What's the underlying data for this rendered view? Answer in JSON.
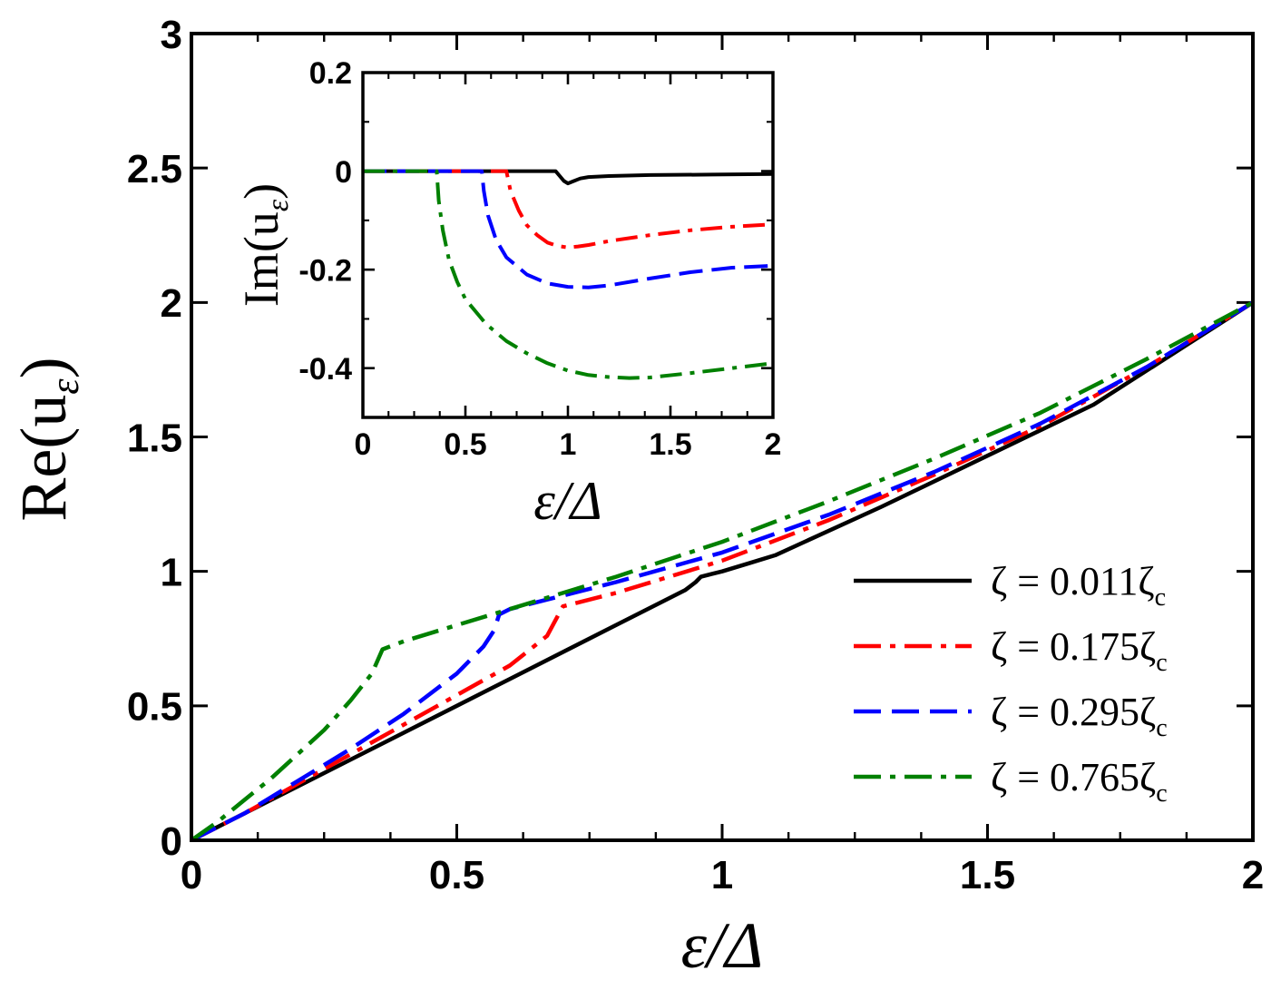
{
  "chart_data": [
    {
      "id": "main",
      "type": "line",
      "xlabel": "ε/Δ",
      "ylabel": "Re(u",
      "ylabel_sub": "ε",
      "ylabel_close": ")",
      "xlim": [
        0,
        2
      ],
      "ylim": [
        0,
        3
      ],
      "xticks": [
        0,
        0.5,
        1,
        1.5,
        2
      ],
      "xtick_labels": [
        "0",
        "0.5",
        "1",
        "1.5",
        "2"
      ],
      "yticks": [
        0,
        0.5,
        1,
        1.5,
        2,
        2.5,
        3
      ],
      "ytick_labels": [
        "0",
        "0.5",
        "1",
        "1.5",
        "2",
        "2.5",
        "3"
      ],
      "legend_position": "lower-right",
      "series": [
        {
          "name": "ζ = 0.011ζ",
          "name_sub": "c",
          "color": "#000000",
          "dash": "solid",
          "x": [
            0,
            0.2,
            0.4,
            0.6,
            0.8,
            0.93,
            0.95,
            0.96,
            0.98,
            1.0,
            1.05,
            1.1,
            1.3,
            1.5,
            1.7,
            2.0
          ],
          "y": [
            0,
            0.2,
            0.4,
            0.6,
            0.8,
            0.93,
            0.96,
            0.98,
            0.99,
            1.0,
            1.03,
            1.06,
            1.24,
            1.43,
            1.62,
            2.0
          ]
        },
        {
          "name": "ζ = 0.175ζ",
          "name_sub": "c",
          "color": "#ff0000",
          "dash": "dashdot",
          "x": [
            0,
            0.1,
            0.2,
            0.3,
            0.4,
            0.5,
            0.6,
            0.67,
            0.7,
            0.8,
            1.0,
            1.2,
            1.4,
            1.6,
            1.8,
            2.0
          ],
          "y": [
            0,
            0.1,
            0.21,
            0.32,
            0.43,
            0.54,
            0.65,
            0.76,
            0.87,
            0.92,
            1.04,
            1.19,
            1.36,
            1.54,
            1.76,
            2.0
          ]
        },
        {
          "name": "ζ = 0.295ζ",
          "name_sub": "c",
          "color": "#0000ff",
          "dash": "dashed",
          "x": [
            0,
            0.1,
            0.2,
            0.3,
            0.4,
            0.5,
            0.55,
            0.57,
            0.58,
            0.6,
            0.8,
            1.0,
            1.2,
            1.4,
            1.6,
            1.8,
            2.0
          ],
          "y": [
            0,
            0.1,
            0.22,
            0.34,
            0.47,
            0.62,
            0.72,
            0.78,
            0.84,
            0.86,
            0.96,
            1.07,
            1.21,
            1.37,
            1.55,
            1.76,
            2.0
          ]
        },
        {
          "name": "ζ = 0.765ζ",
          "name_sub": "c",
          "color": "#008000",
          "dash": "dashdot",
          "x": [
            0,
            0.05,
            0.1,
            0.15,
            0.2,
            0.25,
            0.3,
            0.34,
            0.36,
            0.4,
            0.5,
            0.6,
            0.8,
            1.0,
            1.2,
            1.4,
            1.6,
            1.8,
            2.0
          ],
          "y": [
            0,
            0.07,
            0.15,
            0.23,
            0.32,
            0.41,
            0.52,
            0.62,
            0.71,
            0.74,
            0.8,
            0.86,
            0.98,
            1.11,
            1.26,
            1.42,
            1.59,
            1.79,
            2.0
          ]
        }
      ]
    },
    {
      "id": "inset",
      "type": "line",
      "xlabel": "ε/Δ",
      "ylabel": "Im(u",
      "ylabel_sub": "ε",
      "ylabel_close": ")",
      "xlim": [
        0,
        2
      ],
      "ylim": [
        -0.5,
        0.2
      ],
      "xticks": [
        0,
        0.5,
        1,
        1.5,
        2
      ],
      "xtick_labels": [
        "0",
        "0.5",
        "1",
        "1.5",
        "2"
      ],
      "yticks": [
        -0.4,
        -0.2,
        0,
        0.2
      ],
      "ytick_labels": [
        "-0.4",
        "-0.2",
        "0",
        "0.2"
      ],
      "series": [
        {
          "name": "ζ = 0.011ζc",
          "color": "#000000",
          "dash": "solid",
          "x": [
            0,
            0.94,
            0.96,
            0.98,
            1.0,
            1.03,
            1.06,
            1.1,
            1.2,
            1.4,
            1.7,
            2.0
          ],
          "y": [
            0,
            0,
            -0.01,
            -0.02,
            -0.025,
            -0.02,
            -0.015,
            -0.012,
            -0.01,
            -0.008,
            -0.007,
            -0.006
          ]
        },
        {
          "name": "ζ = 0.175ζc",
          "color": "#ff0000",
          "dash": "dashdot",
          "x": [
            0,
            0.7,
            0.72,
            0.76,
            0.8,
            0.85,
            0.9,
            0.95,
            1.0,
            1.05,
            1.1,
            1.2,
            1.4,
            1.6,
            1.8,
            2.0
          ],
          "y": [
            0,
            0,
            -0.04,
            -0.08,
            -0.11,
            -0.13,
            -0.145,
            -0.152,
            -0.155,
            -0.153,
            -0.15,
            -0.142,
            -0.13,
            -0.12,
            -0.113,
            -0.108
          ]
        },
        {
          "name": "ζ = 0.295ζc",
          "color": "#0000ff",
          "dash": "dashed",
          "x": [
            0,
            0.58,
            0.59,
            0.61,
            0.65,
            0.7,
            0.8,
            0.9,
            1.0,
            1.1,
            1.2,
            1.4,
            1.6,
            1.8,
            2.0
          ],
          "y": [
            0,
            0,
            -0.04,
            -0.09,
            -0.14,
            -0.175,
            -0.21,
            -0.228,
            -0.235,
            -0.236,
            -0.232,
            -0.218,
            -0.205,
            -0.196,
            -0.192
          ]
        },
        {
          "name": "ζ = 0.765ζc",
          "color": "#008000",
          "dash": "dashdot",
          "x": [
            0,
            0.36,
            0.37,
            0.39,
            0.42,
            0.46,
            0.5,
            0.6,
            0.7,
            0.8,
            0.9,
            1.0,
            1.1,
            1.2,
            1.3,
            1.4,
            1.6,
            1.8,
            2.0
          ],
          "y": [
            0,
            0,
            -0.06,
            -0.12,
            -0.18,
            -0.225,
            -0.26,
            -0.31,
            -0.345,
            -0.37,
            -0.39,
            -0.405,
            -0.414,
            -0.418,
            -0.42,
            -0.419,
            -0.41,
            -0.4,
            -0.39
          ]
        }
      ]
    }
  ]
}
